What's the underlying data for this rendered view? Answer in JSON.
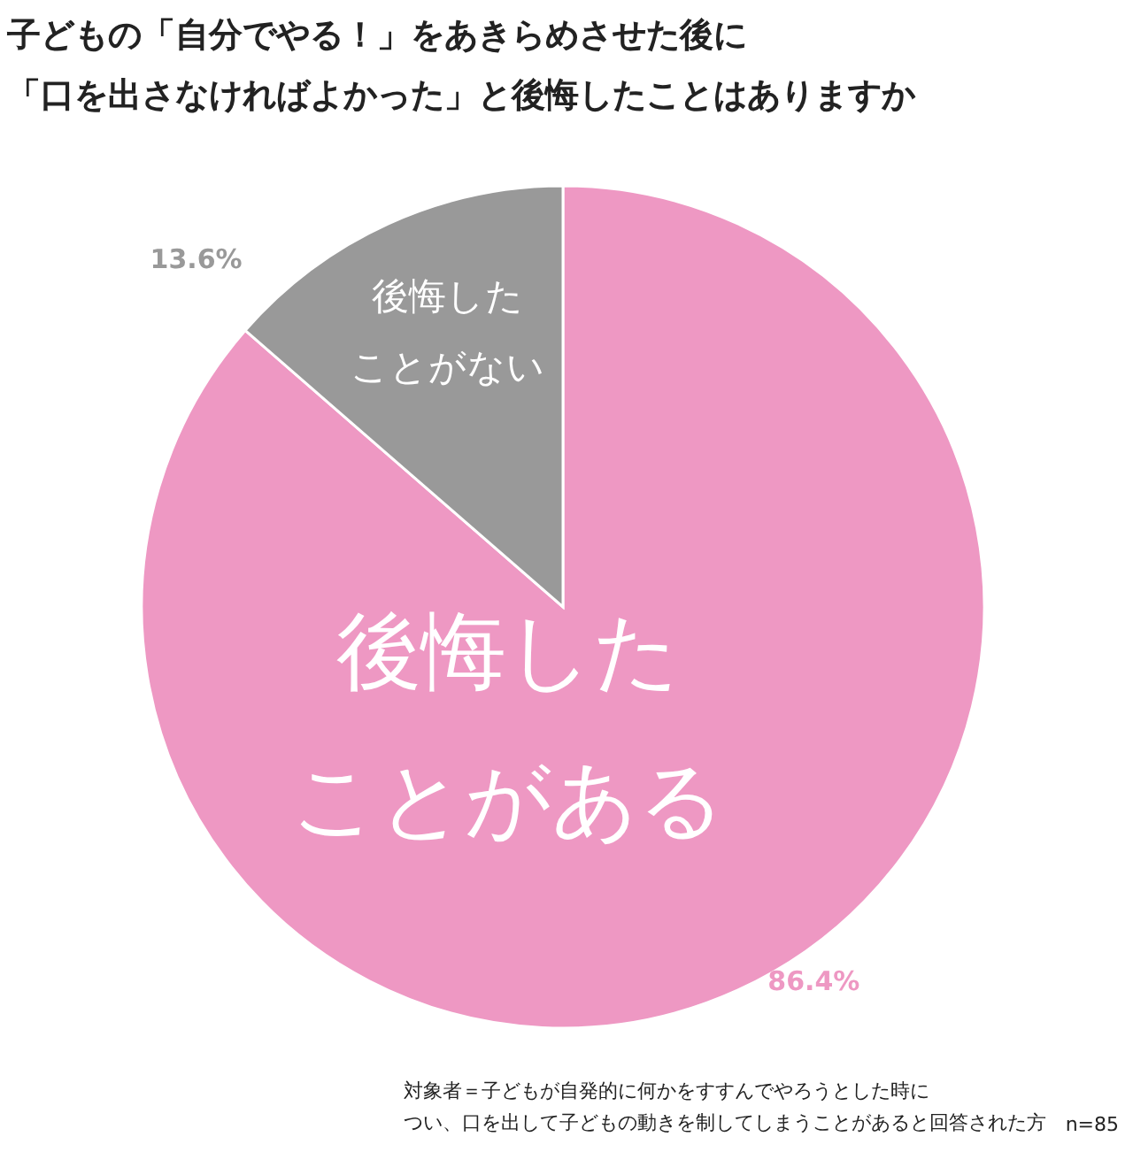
{
  "chart_data": {
    "type": "pie",
    "title": "子どもの「自分でやる！」をあきらめさせた後に",
    "subtitle": "「口を出さなければよかった」と後悔したことはありますか",
    "categories": [
      "後悔したことがある",
      "後悔したことがない"
    ],
    "values": [
      86.4,
      13.6
    ],
    "colors": [
      "#ee98c3",
      "#999999"
    ],
    "value_labels": [
      "86.4%",
      "13.6%"
    ],
    "annotations": [
      "対象者＝子どもが自発的に何かをすすんでやろうとした時に",
      "つい、口を出して子どもの動きを制してしまうことがあると回答された方",
      "n=85"
    ]
  }
}
